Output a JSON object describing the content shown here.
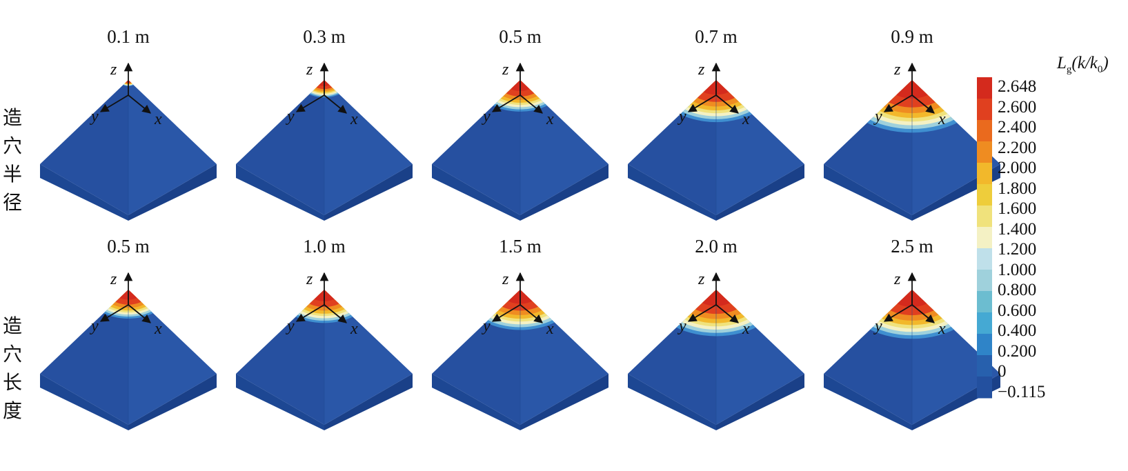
{
  "row_labels": [
    {
      "chars": [
        "造",
        "穴",
        "半",
        "径"
      ]
    },
    {
      "chars": [
        "造",
        "穴",
        "长",
        "度"
      ]
    }
  ],
  "rows": [
    {
      "panels": [
        {
          "title": "0.1 m",
          "extent": 0.07
        },
        {
          "title": "0.3 m",
          "extent": 0.2
        },
        {
          "title": "0.5 m",
          "extent": 0.36
        },
        {
          "title": "0.7 m",
          "extent": 0.48
        },
        {
          "title": "0.9 m",
          "extent": 0.6
        }
      ]
    },
    {
      "panels": [
        {
          "title": "0.5 m",
          "extent": 0.33
        },
        {
          "title": "1.0 m",
          "extent": 0.38
        },
        {
          "title": "1.5 m",
          "extent": 0.46
        },
        {
          "title": "2.0 m",
          "extent": 0.53
        },
        {
          "title": "2.5 m",
          "extent": 0.56
        }
      ]
    }
  ],
  "axes": {
    "x": "x",
    "y": "y",
    "z": "z"
  },
  "colorbar": {
    "title_main": "L",
    "title_sub": "g",
    "title_rest": "(k/k",
    "title_sub2": "0",
    "title_end": ")",
    "ticks": [
      "2.648",
      "2.600",
      "2.400",
      "2.200",
      "2.000",
      "1.800",
      "1.600",
      "1.400",
      "1.200",
      "1.000",
      "0.800",
      "0.600",
      "0.400",
      "0.200",
      "0",
      "−0.115"
    ],
    "colors": [
      "#d42a1d",
      "#e0401f",
      "#ea6a1e",
      "#ef8c21",
      "#f2b82b",
      "#eecd3b",
      "#f0e27c",
      "#f4f1c4",
      "#bfe0ea",
      "#9fd1dc",
      "#6cbdd0",
      "#45a9d3",
      "#2f84c8",
      "#2760ad",
      "#23509f"
    ]
  }
}
